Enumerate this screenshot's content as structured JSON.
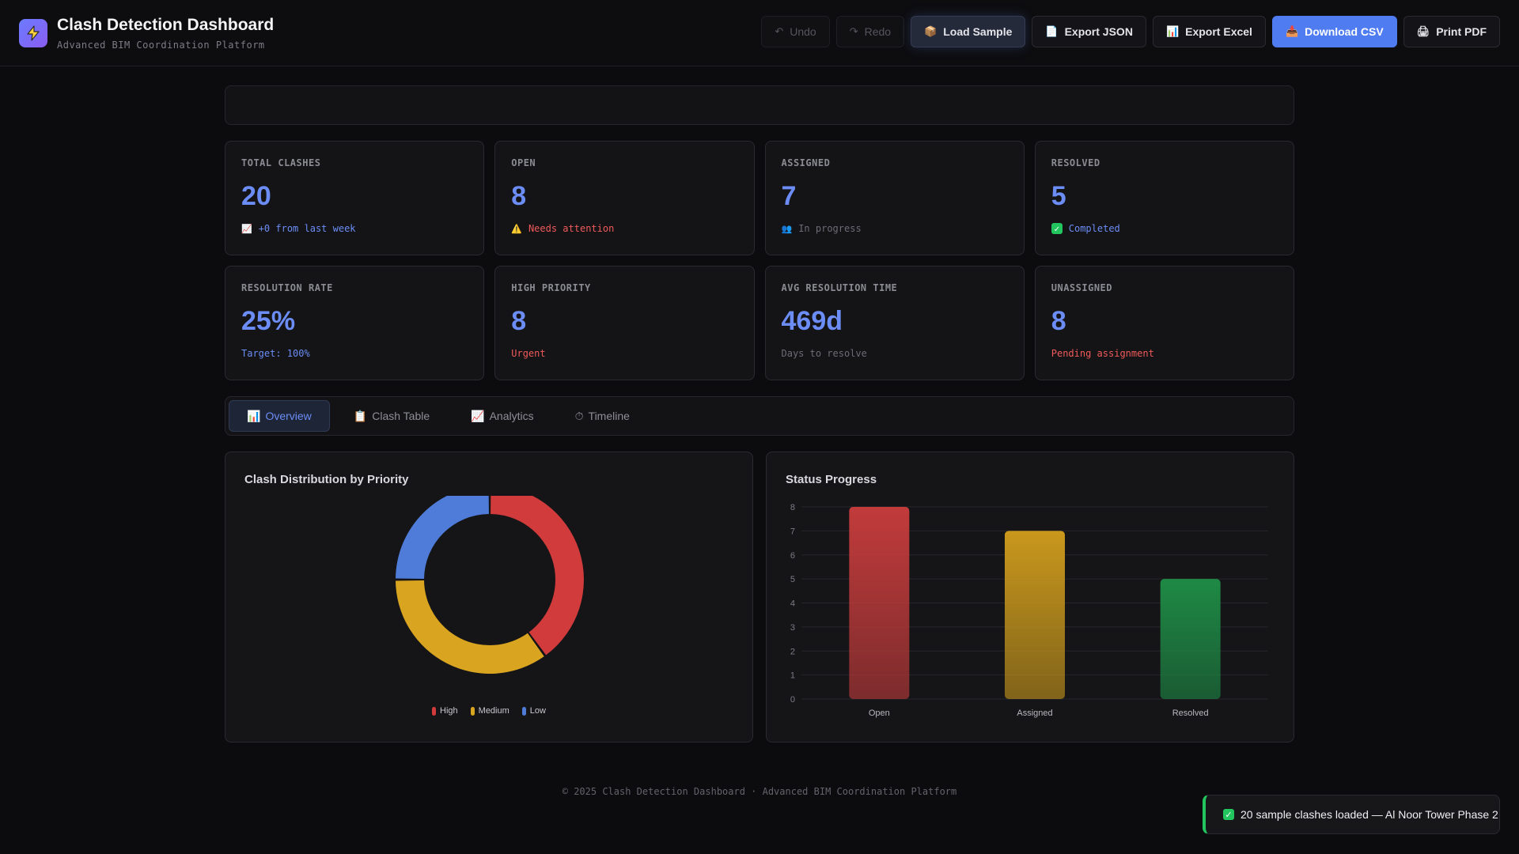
{
  "header": {
    "title": "Clash Detection Dashboard",
    "subtitle": "Advanced BIM Coordination Platform",
    "buttons": {
      "undo": "Undo",
      "redo": "Redo",
      "load_sample": "Load Sample",
      "export_json": "Export JSON",
      "export_excel": "Export Excel",
      "download_csv": "Download CSV",
      "print_pdf": "Print PDF"
    }
  },
  "stats": [
    {
      "label": "TOTAL CLASHES",
      "value": "20",
      "sub": "+0 from last week",
      "icon": "chart-up-icon"
    },
    {
      "label": "OPEN",
      "value": "8",
      "sub": "Needs attention",
      "icon": "warning-icon"
    },
    {
      "label": "ASSIGNED",
      "value": "7",
      "sub": "In progress",
      "icon": "users-icon"
    },
    {
      "label": "RESOLVED",
      "value": "5",
      "sub": "Completed",
      "icon": "check-icon"
    },
    {
      "label": "RESOLUTION RATE",
      "value": "25%",
      "sub": "Target: 100%"
    },
    {
      "label": "HIGH PRIORITY",
      "value": "8",
      "sub": "Urgent"
    },
    {
      "label": "AVG RESOLUTION TIME",
      "value": "469d",
      "sub": "Days to resolve"
    },
    {
      "label": "UNASSIGNED",
      "value": "8",
      "sub": "Pending assignment"
    }
  ],
  "tabs": [
    {
      "label": "Overview",
      "icon": "bar-chart-icon"
    },
    {
      "label": "Clash Table",
      "icon": "clipboard-icon"
    },
    {
      "label": "Analytics",
      "icon": "chart-up-icon"
    },
    {
      "label": "Timeline",
      "icon": "stopwatch-icon"
    }
  ],
  "colors": {
    "high": "#d13b3b",
    "medium": "#d9a521",
    "low": "#4f7cd9",
    "open": "#c23b3b",
    "assigned": "#c9981c",
    "resolved": "#1e8a45",
    "accent": "#6b8df5"
  },
  "chart_data": [
    {
      "type": "pie",
      "title": "Clash Distribution by Priority",
      "categories": [
        "High",
        "Medium",
        "Low"
      ],
      "values": [
        8,
        7,
        5
      ]
    },
    {
      "type": "bar",
      "title": "Status Progress",
      "categories": [
        "Open",
        "Assigned",
        "Resolved"
      ],
      "values": [
        8,
        7,
        5
      ],
      "ylim": [
        0,
        8
      ],
      "yticks": [
        0,
        1,
        2,
        3,
        4,
        5,
        6,
        7,
        8
      ],
      "grid": true
    }
  ],
  "footer": "© 2025 Clash Detection Dashboard · Advanced BIM Coordination Platform",
  "toast": "20 sample clashes loaded — Al Noor Tower Phase 2"
}
